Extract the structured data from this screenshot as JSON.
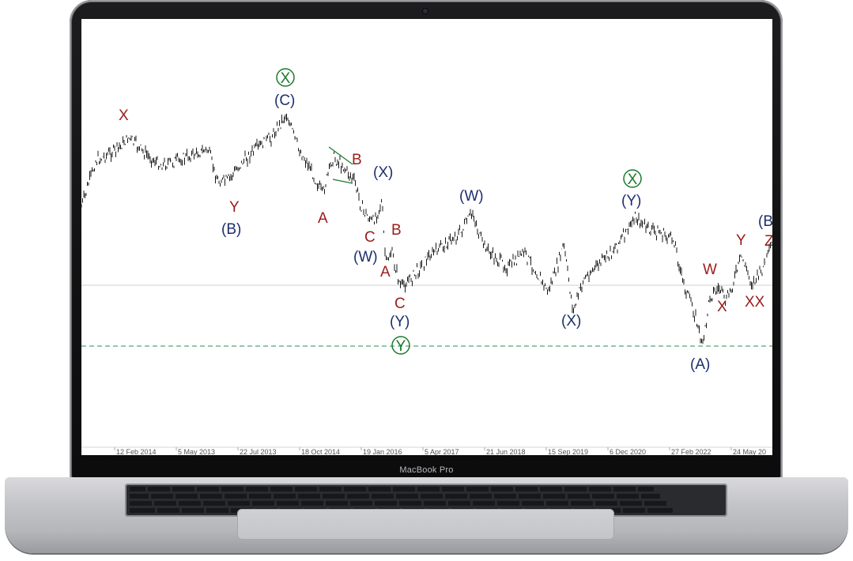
{
  "device": {
    "brand_label": "MacBook Pro"
  },
  "chart": {
    "title_text": "",
    "x_axis_dates": [
      "12 Feb 2014",
      "5 May 2013",
      "22 Jul 2013",
      "18 Oct 2014",
      "19 Jan 2016",
      "5 Apr 2017",
      "21 Jun 2018",
      "15 Sep 2019",
      "6 Dec 2020",
      "27 Feb 2022",
      "24 May 20"
    ],
    "wave_labels": {
      "red": [
        "X",
        "Y",
        "A",
        "B",
        "C",
        "B",
        "A",
        "C",
        "W",
        "X",
        "Y",
        "XX",
        "Z"
      ],
      "blue": [
        "(C)",
        "(B)",
        "(X)",
        "(W)",
        "(Y)",
        "(W)",
        "(X)",
        "(Y)",
        "(A)",
        "(B"
      ],
      "green_circled": [
        "X",
        "X",
        "Y"
      ]
    },
    "colors": {
      "red": "#9b1b1b",
      "blue": "#1d2e6e",
      "green": "#1b7a2c",
      "price": "#1a1a1a",
      "dashed": "#2e8b57",
      "hline": "#cfcfcf"
    }
  }
}
